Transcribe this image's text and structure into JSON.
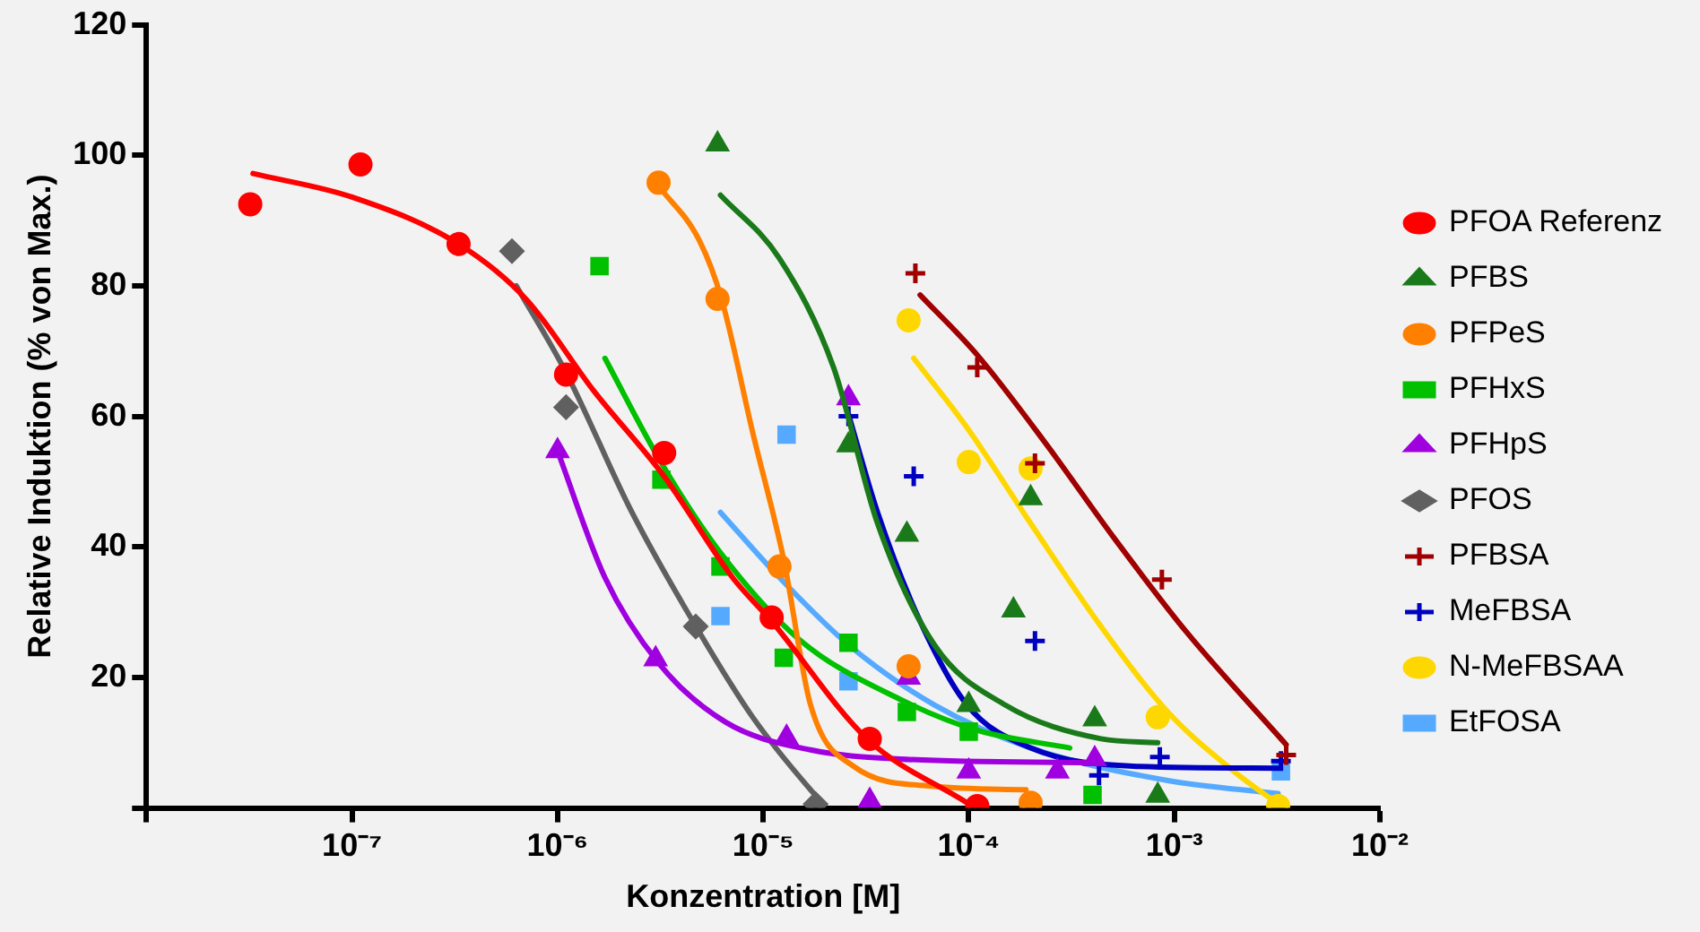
{
  "chart_data": {
    "type": "scatter",
    "xlabel": "Konzentration [M]",
    "ylabel": "Relative Induktion (% von Max.)",
    "log": "x",
    "grid": false,
    "legend": "right",
    "xlim": [
      1e-08,
      0.01
    ],
    "xticks": [
      {
        "value": 1e-08,
        "label": null
      },
      {
        "value": 1e-07,
        "label": "10⁻⁷"
      },
      {
        "value": 1e-06,
        "label": "10⁻⁶"
      },
      {
        "value": 1e-05,
        "label": "10⁻⁵"
      },
      {
        "value": 0.0001,
        "label": "10⁻⁴"
      },
      {
        "value": 0.001,
        "label": "10⁻³"
      },
      {
        "value": 0.01,
        "label": "10⁻²"
      }
    ],
    "ylim": [
      0,
      120
    ],
    "yticks": [
      {
        "value": 0,
        "label": null
      },
      20,
      40,
      60,
      80,
      100,
      120
    ],
    "series": [
      {
        "name": "PFOA Referenz",
        "type": "scatter",
        "marker": "circle",
        "color": "#ff0000",
        "x": [
          3.2e-08,
          1.1e-07,
          3.3e-07,
          1.1e-06,
          3.3e-06,
          1.1e-05,
          3.3e-05,
          0.00011
        ],
        "values": [
          92.5,
          98.6,
          86.4,
          66.4,
          54.4,
          29.2,
          10.6,
          0.3
        ]
      },
      {
        "type": "line",
        "color": "#ff0000",
        "x": [
          3.3e-08,
          1e-07,
          3.3e-07,
          7.1e-07,
          1.5e-06,
          3.3e-06,
          7.1e-06,
          1.1e-05,
          3.2e-05,
          9.8e-05
        ],
        "values": [
          97.2,
          93.6,
          86.4,
          77.8,
          63.9,
          50.8,
          35.3,
          28.6,
          10.6,
          0.8
        ]
      },
      {
        "name": "PFBS",
        "type": "scatter",
        "marker": "triangle",
        "color": "#1a7a1a",
        "x": [
          6e-06,
          2.6e-05,
          5e-05,
          0.0001,
          0.000165,
          0.0002,
          0.00041,
          0.00083
        ],
        "values": [
          101.7,
          55.6,
          41.9,
          15.8,
          30.3,
          47.5,
          13.6,
          1.9
        ]
      },
      {
        "type": "line",
        "color": "#1a7a1a",
        "x": [
          6.2e-06,
          1.2e-05,
          2.2e-05,
          3.6e-05,
          6.8e-05,
          0.00015,
          0.00044,
          0.00083
        ],
        "values": [
          93.9,
          84.2,
          67.5,
          43.6,
          25,
          15.8,
          10.6,
          10
        ]
      },
      {
        "name": "PFPeS",
        "type": "scatter",
        "marker": "circle",
        "color": "#ff8000",
        "x": [
          3.1e-06,
          6e-06,
          1.2e-05,
          5.1e-05,
          0.0002
        ],
        "values": [
          95.8,
          78,
          37,
          21.7,
          0.8
        ]
      },
      {
        "type": "line",
        "color": "#ff8000",
        "x": [
          3.1e-06,
          4.9e-06,
          6.3e-06,
          8.9e-06,
          1.26e-05,
          1.7e-05,
          2.75e-05,
          6.8e-05,
          0.00019
        ],
        "values": [
          95.3,
          86.9,
          77.8,
          57.5,
          38,
          15.8,
          6.4,
          3.3,
          2.8
        ]
      },
      {
        "name": "PFHxS",
        "type": "scatter",
        "marker": "square",
        "color": "#00c000",
        "x": [
          1.6e-06,
          3.2e-06,
          6.2e-06,
          1.26e-05,
          2.6e-05,
          5e-05,
          0.0001,
          0.0004
        ],
        "values": [
          83,
          50.3,
          37,
          23,
          25.3,
          14.7,
          11.7,
          2
        ]
      },
      {
        "type": "line",
        "color": "#00c000",
        "x": [
          1.7e-06,
          3.1e-06,
          6e-06,
          1.5e-05,
          4.6e-05,
          0.00011,
          0.00031
        ],
        "values": [
          68.9,
          53.6,
          39.7,
          25.8,
          16.7,
          11.9,
          9.2
        ]
      },
      {
        "name": "PFHpS",
        "type": "scatter",
        "marker": "triangle",
        "color": "#a000e0",
        "x": [
          1e-06,
          3e-06,
          1.3e-05,
          2.6e-05,
          3.3e-05,
          5.1e-05,
          0.0001,
          0.00027,
          0.00041
        ],
        "values": [
          54.7,
          22.8,
          10.8,
          62.8,
          1.1,
          20,
          5.6,
          5.6,
          7.5
        ]
      },
      {
        "type": "line",
        "color": "#a000e0",
        "x": [
          1e-06,
          1.7e-06,
          3.1e-06,
          6.6e-06,
          1.7e-05,
          4.6e-05,
          0.00044
        ],
        "values": [
          54.7,
          35.3,
          22.2,
          13.1,
          8.9,
          7.5,
          6.9
        ]
      },
      {
        "name": "PFOS",
        "type": "scatter",
        "marker": "diamond",
        "color": "#606060",
        "x": [
          6e-07,
          1.1e-06,
          4.7e-06,
          1.8e-05
        ],
        "values": [
          85.3,
          61.4,
          27.8,
          0.6
        ]
      },
      {
        "type": "line",
        "color": "#606060",
        "x": [
          6.3e-07,
          1.1e-06,
          2.3e-06,
          4.9e-06,
          8.9e-06,
          1.7e-05,
          1.95e-05
        ],
        "values": [
          80,
          66.7,
          45.3,
          26.9,
          13.9,
          2.8,
          0.8
        ]
      },
      {
        "name": "PFBSA",
        "type": "scatter",
        "marker": "cross",
        "color": "#a00000",
        "x": [
          5.5e-05,
          0.00011,
          0.00021,
          0.00087,
          0.0035
        ],
        "values": [
          81.9,
          67.5,
          52.8,
          35,
          8.1
        ]
      },
      {
        "type": "line",
        "color": "#a00000",
        "x": [
          5.8e-05,
          0.00011,
          0.00024,
          0.0005,
          0.00115,
          0.0035
        ],
        "values": [
          78.6,
          69.4,
          55.6,
          41.7,
          26.9,
          9.7
        ]
      },
      {
        "name": "MeFBSA",
        "type": "scatter",
        "marker": "cross",
        "color": "#0000c0",
        "x": [
          2.6e-05,
          5.4e-05,
          0.00021,
          0.00043,
          0.00085,
          0.0033
        ],
        "values": [
          60,
          50.8,
          25.6,
          5,
          7.8,
          7.2
        ]
      },
      {
        "type": "line",
        "color": "#0000c0",
        "x": [
          2.6e-05,
          3.6e-05,
          5.8e-05,
          9.8e-05,
          0.0002,
          0.00063,
          0.0032
        ],
        "values": [
          60.3,
          45.3,
          28.6,
          15.8,
          9.2,
          6.4,
          6.1
        ]
      },
      {
        "name": "N-MeFBSAA",
        "type": "scatter",
        "marker": "circle",
        "color": "#ffd700",
        "x": [
          5.1e-05,
          0.0001,
          0.0002,
          0.00083,
          0.0032
        ],
        "values": [
          74.7,
          53,
          52,
          13.9,
          0.3
        ]
      },
      {
        "type": "line",
        "color": "#ffd700",
        "x": [
          5.4e-05,
          9.8e-05,
          0.0002,
          0.00044,
          0.00093,
          0.00195,
          0.0032
        ],
        "values": [
          68.9,
          58.3,
          43.6,
          27.8,
          14.7,
          5.6,
          0.6
        ]
      },
      {
        "name": "EtFOSA",
        "type": "scatter",
        "marker": "square",
        "color": "#55aaff",
        "x": [
          6.2e-06,
          1.3e-05,
          2.6e-05,
          0.0033
        ],
        "values": [
          29.4,
          57.2,
          19.4,
          5.6
        ]
      },
      {
        "type": "line",
        "color": "#55aaff",
        "x": [
          6.2e-06,
          1.2e-05,
          2.6e-05,
          6.8e-05,
          0.0002,
          0.00093,
          0.0032
        ],
        "values": [
          45.3,
          35.3,
          25,
          15.8,
          9.2,
          4.2,
          2.2
        ]
      }
    ]
  }
}
